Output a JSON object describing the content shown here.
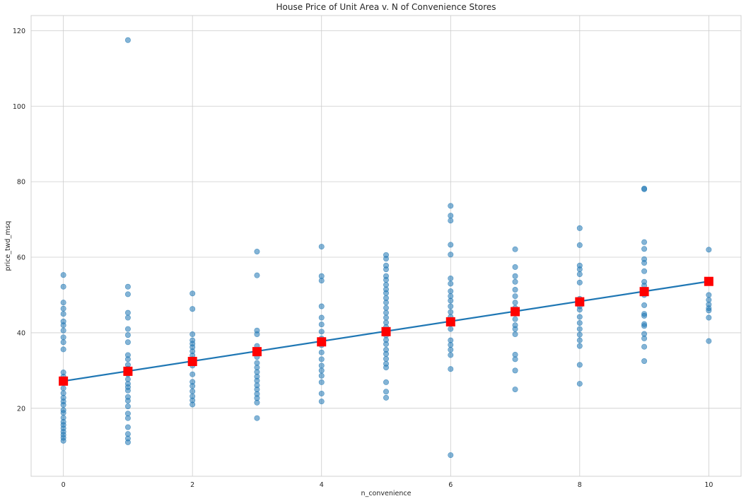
{
  "chart_data": {
    "type": "scatter",
    "title": "House Price of Unit Area v. N of Convenience Stores",
    "xlabel": "n_convenience",
    "ylabel": "price_twd_msq",
    "xlim": [
      -0.5,
      10.5
    ],
    "ylim": [
      2,
      124
    ],
    "xticks": [
      0,
      2,
      4,
      6,
      8,
      10
    ],
    "yticks": [
      20,
      40,
      60,
      80,
      100,
      120
    ],
    "grid": true,
    "points_color": "#1f77b4",
    "line_color": "#1f77b4",
    "marker_color": "#ff0000",
    "series": [
      {
        "kind": "scatter",
        "points": [
          [
            0,
            55.3
          ],
          [
            0,
            52.2
          ],
          [
            0,
            48.0
          ],
          [
            0,
            46.4
          ],
          [
            0,
            45.0
          ],
          [
            0,
            43.0
          ],
          [
            0,
            42.0
          ],
          [
            0,
            40.6
          ],
          [
            0,
            38.8
          ],
          [
            0,
            37.5
          ],
          [
            0,
            35.6
          ],
          [
            0,
            29.5
          ],
          [
            0,
            28.4
          ],
          [
            0,
            27.2
          ],
          [
            0,
            25.3
          ],
          [
            0,
            24.0
          ],
          [
            0,
            22.8
          ],
          [
            0,
            21.8
          ],
          [
            0,
            20.9
          ],
          [
            0,
            19.5
          ],
          [
            0,
            18.8
          ],
          [
            0,
            17.5
          ],
          [
            0,
            16.4
          ],
          [
            0,
            15.6
          ],
          [
            0,
            14.7
          ],
          [
            0,
            13.8
          ],
          [
            0,
            13.0
          ],
          [
            0,
            12.2
          ],
          [
            0,
            11.4
          ],
          [
            1,
            117.5
          ],
          [
            1,
            52.2
          ],
          [
            1,
            50.2
          ],
          [
            1,
            45.3
          ],
          [
            1,
            44.0
          ],
          [
            1,
            41.0
          ],
          [
            1,
            39.4
          ],
          [
            1,
            37.5
          ],
          [
            1,
            34.1
          ],
          [
            1,
            33.0
          ],
          [
            1,
            31.5
          ],
          [
            1,
            30.5
          ],
          [
            1,
            29.0
          ],
          [
            1,
            27.7
          ],
          [
            1,
            26.5
          ],
          [
            1,
            25.6
          ],
          [
            1,
            24.7
          ],
          [
            1,
            23.0
          ],
          [
            1,
            22.0
          ],
          [
            1,
            20.5
          ],
          [
            1,
            18.6
          ],
          [
            1,
            17.4
          ],
          [
            1,
            15.0
          ],
          [
            1,
            13.2
          ],
          [
            1,
            12.0
          ],
          [
            1,
            11.0
          ],
          [
            2,
            50.4
          ],
          [
            2,
            46.3
          ],
          [
            2,
            39.6
          ],
          [
            2,
            38.0
          ],
          [
            2,
            37.1
          ],
          [
            2,
            36.2
          ],
          [
            2,
            35.1
          ],
          [
            2,
            34.0
          ],
          [
            2,
            33.0
          ],
          [
            2,
            31.3
          ],
          [
            2,
            29.0
          ],
          [
            2,
            27.0
          ],
          [
            2,
            25.9
          ],
          [
            2,
            24.5
          ],
          [
            2,
            23.2
          ],
          [
            2,
            22.1
          ],
          [
            2,
            21.0
          ],
          [
            3,
            61.5
          ],
          [
            3,
            55.2
          ],
          [
            3,
            40.6
          ],
          [
            3,
            39.6
          ],
          [
            3,
            36.5
          ],
          [
            3,
            35.2
          ],
          [
            3,
            33.6
          ],
          [
            3,
            32.0
          ],
          [
            3,
            30.8
          ],
          [
            3,
            29.6
          ],
          [
            3,
            28.4
          ],
          [
            3,
            27.3
          ],
          [
            3,
            26.1
          ],
          [
            3,
            25.0
          ],
          [
            3,
            23.8
          ],
          [
            3,
            22.7
          ],
          [
            3,
            21.5
          ],
          [
            3,
            17.4
          ],
          [
            4,
            62.8
          ],
          [
            4,
            55.0
          ],
          [
            4,
            53.8
          ],
          [
            4,
            47.0
          ],
          [
            4,
            44.0
          ],
          [
            4,
            42.2
          ],
          [
            4,
            40.3
          ],
          [
            4,
            38.5
          ],
          [
            4,
            36.7
          ],
          [
            4,
            34.8
          ],
          [
            4,
            33.0
          ],
          [
            4,
            31.3
          ],
          [
            4,
            30.0
          ],
          [
            4,
            28.6
          ],
          [
            4,
            26.9
          ],
          [
            4,
            23.9
          ],
          [
            4,
            21.8
          ],
          [
            5,
            60.6
          ],
          [
            5,
            59.6
          ],
          [
            5,
            57.8
          ],
          [
            5,
            56.8
          ],
          [
            5,
            55.0
          ],
          [
            5,
            54.0
          ],
          [
            5,
            52.7
          ],
          [
            5,
            51.5
          ],
          [
            5,
            50.5
          ],
          [
            5,
            49.2
          ],
          [
            5,
            48.0
          ],
          [
            5,
            46.6
          ],
          [
            5,
            45.3
          ],
          [
            5,
            44.0
          ],
          [
            5,
            42.7
          ],
          [
            5,
            41.5
          ],
          [
            5,
            40.6
          ],
          [
            5,
            39.3
          ],
          [
            5,
            38.1
          ],
          [
            5,
            37.0
          ],
          [
            5,
            35.5
          ],
          [
            5,
            34.4
          ],
          [
            5,
            33.1
          ],
          [
            5,
            31.8
          ],
          [
            5,
            30.8
          ],
          [
            5,
            26.9
          ],
          [
            5,
            24.4
          ],
          [
            5,
            22.8
          ],
          [
            6,
            73.6
          ],
          [
            6,
            71.0
          ],
          [
            6,
            69.7
          ],
          [
            6,
            63.3
          ],
          [
            6,
            60.7
          ],
          [
            6,
            54.4
          ],
          [
            6,
            53.0
          ],
          [
            6,
            51.0
          ],
          [
            6,
            49.7
          ],
          [
            6,
            48.5
          ],
          [
            6,
            47.0
          ],
          [
            6,
            45.5
          ],
          [
            6,
            44.2
          ],
          [
            6,
            42.4
          ],
          [
            6,
            41.0
          ],
          [
            6,
            38.0
          ],
          [
            6,
            36.8
          ],
          [
            6,
            35.5
          ],
          [
            6,
            34.1
          ],
          [
            6,
            30.4
          ],
          [
            6,
            7.6
          ],
          [
            7,
            62.1
          ],
          [
            7,
            57.4
          ],
          [
            7,
            55.0
          ],
          [
            7,
            53.5
          ],
          [
            7,
            51.4
          ],
          [
            7,
            49.7
          ],
          [
            7,
            48.0
          ],
          [
            7,
            46.6
          ],
          [
            7,
            45.1
          ],
          [
            7,
            43.6
          ],
          [
            7,
            42.0
          ],
          [
            7,
            41.0
          ],
          [
            7,
            39.6
          ],
          [
            7,
            34.2
          ],
          [
            7,
            33.0
          ],
          [
            7,
            30.0
          ],
          [
            7,
            25.0
          ],
          [
            8,
            67.7
          ],
          [
            8,
            63.2
          ],
          [
            8,
            57.8
          ],
          [
            8,
            56.8
          ],
          [
            8,
            55.5
          ],
          [
            8,
            53.3
          ],
          [
            8,
            49.0
          ],
          [
            8,
            47.0
          ],
          [
            8,
            46.1
          ],
          [
            8,
            44.2
          ],
          [
            8,
            42.6
          ],
          [
            8,
            41.0
          ],
          [
            8,
            39.5
          ],
          [
            8,
            38.0
          ],
          [
            8,
            36.5
          ],
          [
            8,
            31.5
          ],
          [
            8,
            26.5
          ],
          [
            9,
            78.2
          ],
          [
            9,
            78.0
          ],
          [
            9,
            64.0
          ],
          [
            9,
            62.2
          ],
          [
            9,
            59.5
          ],
          [
            9,
            58.5
          ],
          [
            9,
            56.3
          ],
          [
            9,
            53.5
          ],
          [
            9,
            52.5
          ],
          [
            9,
            50.0
          ],
          [
            9,
            47.3
          ],
          [
            9,
            45.0
          ],
          [
            9,
            44.5
          ],
          [
            9,
            42.3
          ],
          [
            9,
            41.8
          ],
          [
            9,
            39.7
          ],
          [
            9,
            38.5
          ],
          [
            9,
            36.3
          ],
          [
            9,
            32.5
          ],
          [
            10,
            62.0
          ],
          [
            10,
            50.0
          ],
          [
            10,
            48.7
          ],
          [
            10,
            47.5
          ],
          [
            10,
            46.5
          ],
          [
            10,
            45.9
          ],
          [
            10,
            44.0
          ],
          [
            10,
            37.8
          ]
        ]
      },
      {
        "kind": "line",
        "x": [
          0,
          10
        ],
        "y": [
          27.2,
          53.6
        ]
      },
      {
        "kind": "markers",
        "x": [
          0,
          1,
          2,
          3,
          4,
          5,
          6,
          7,
          8,
          9,
          10
        ],
        "y": [
          27.2,
          29.8,
          32.4,
          35.0,
          37.6,
          40.3,
          42.9,
          45.6,
          48.2,
          50.9,
          53.6
        ]
      }
    ]
  }
}
